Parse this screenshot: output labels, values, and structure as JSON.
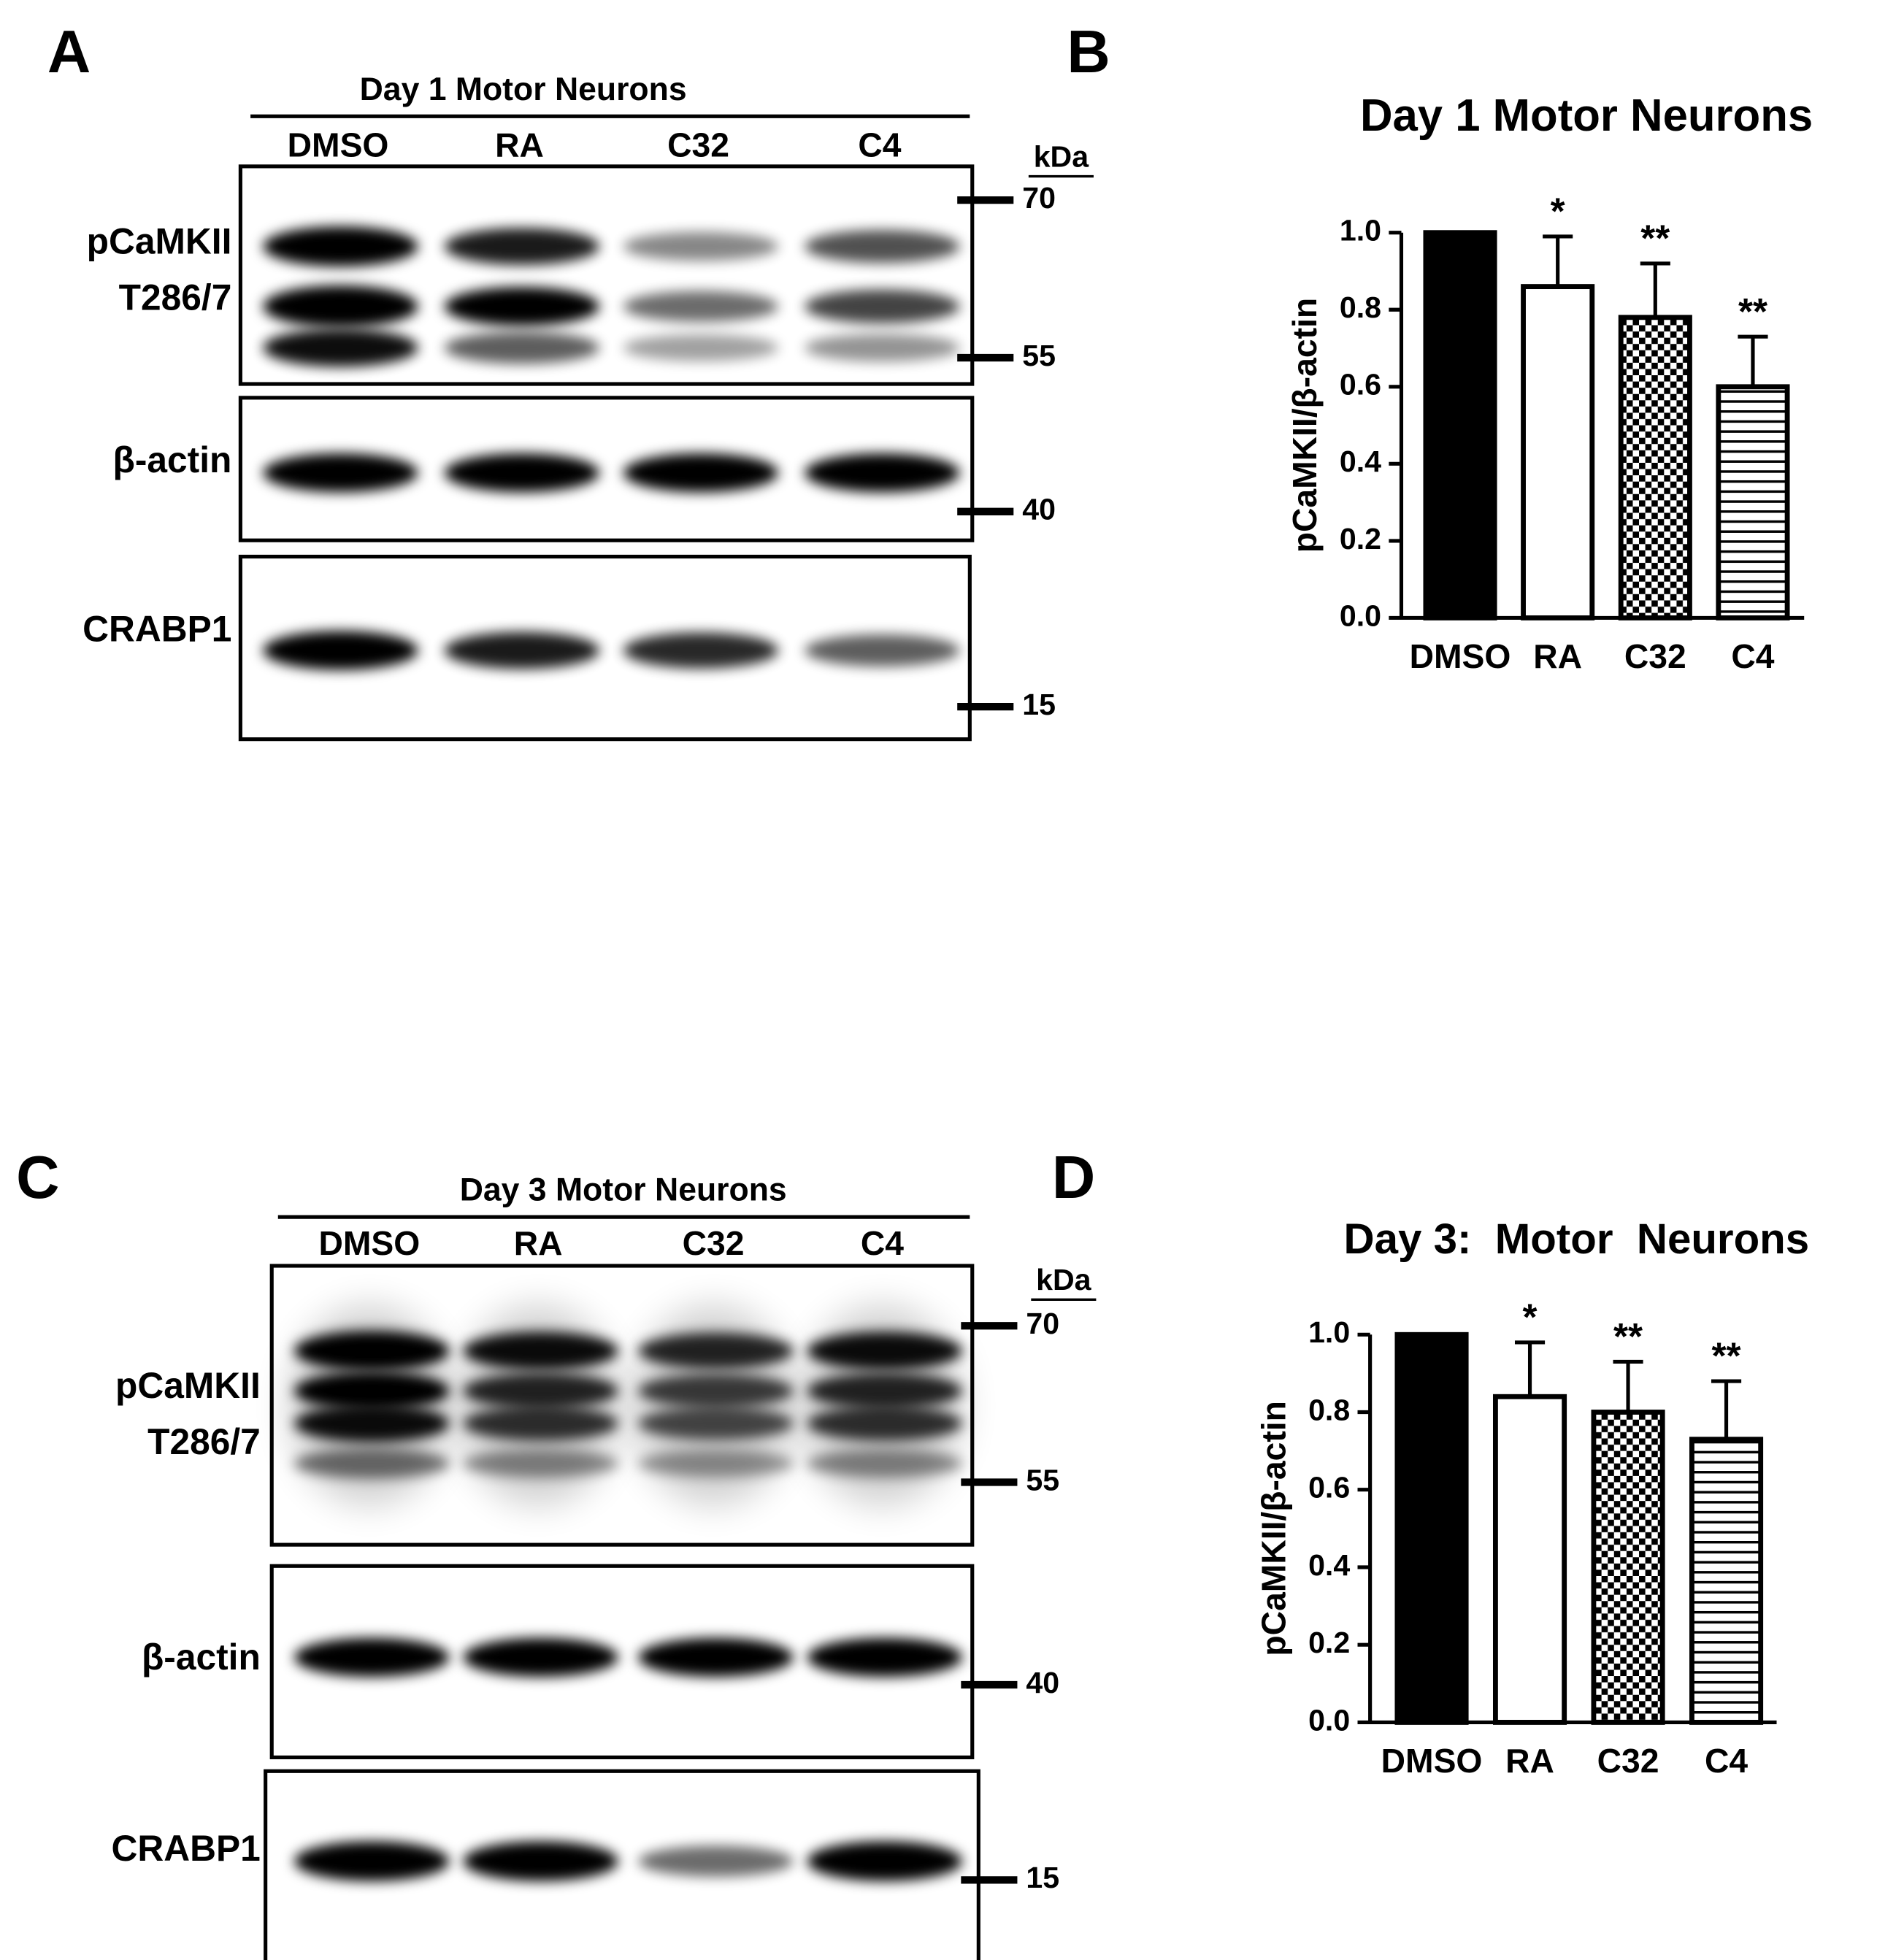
{
  "panels": [
    {
      "letter": "A",
      "title": "Day 1 Motor Neurons",
      "lanes": [
        "DMSO",
        "RA",
        "C32",
        "C4"
      ],
      "unit": "kDa",
      "rows": [
        {
          "label": [
            "pCaMKII",
            "T286/7"
          ]
        },
        {
          "label": [
            "β-actin"
          ]
        },
        {
          "label": [
            "CRABP1"
          ]
        }
      ],
      "markers": [
        "70",
        "55",
        "40",
        "15"
      ]
    },
    {
      "letter": "C",
      "title": "Day 3 Motor Neurons",
      "lanes": [
        "DMSO",
        "RA",
        "C32",
        "C4"
      ],
      "unit": "kDa",
      "rows": [
        {
          "label": [
            "pCaMKII",
            "T286/7"
          ]
        },
        {
          "label": [
            "β-actin"
          ]
        },
        {
          "label": [
            "CRABP1"
          ]
        }
      ],
      "markers": [
        "70",
        "55",
        "40",
        "15"
      ]
    }
  ],
  "chart_data": [
    {
      "type": "bar",
      "panel": "B",
      "title": "Day 1 Motor Neurons",
      "ylabel": "pCaMKII/β-actin",
      "categories": [
        "DMSO",
        "RA",
        "C32",
        "C4"
      ],
      "values": [
        1.0,
        0.86,
        0.78,
        0.6
      ],
      "errors": [
        0,
        0.13,
        0.14,
        0.13
      ],
      "annotations": [
        null,
        "*",
        "**",
        "**"
      ],
      "patterns": [
        "solid",
        "empty",
        "checker",
        "hstripes"
      ],
      "color": "#000000",
      "ylim": [
        0,
        1.0
      ],
      "yticks": [
        {
          "value": 0,
          "label": "0.0"
        },
        0.2,
        0.4,
        0.6,
        0.8,
        {
          "value": 1.0,
          "label": "1.0"
        }
      ]
    },
    {
      "type": "bar",
      "panel": "D",
      "title": "Day 3:  Motor  Neurons",
      "ylabel": "pCaMKII/β-actin",
      "categories": [
        "DMSO",
        "RA",
        "C32",
        "C4"
      ],
      "values": [
        1.0,
        0.84,
        0.8,
        0.73
      ],
      "errors": [
        0,
        0.14,
        0.13,
        0.15
      ],
      "annotations": [
        null,
        "*",
        "**",
        "**"
      ],
      "patterns": [
        "solid",
        "empty",
        "checker",
        "hstripes"
      ],
      "color": "#000000",
      "ylim": [
        0,
        1.0
      ],
      "yticks": [
        {
          "value": 0,
          "label": "0.0"
        },
        0.2,
        0.4,
        0.6,
        0.8,
        {
          "value": 1.0,
          "label": "1.0"
        }
      ]
    }
  ]
}
